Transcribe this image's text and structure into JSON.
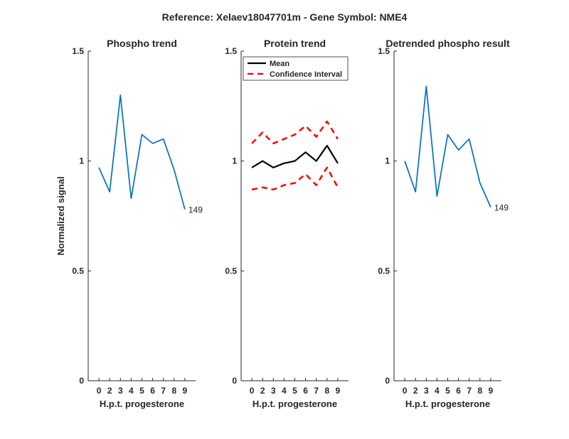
{
  "figure": {
    "suptitle": "Reference:  Xelaev18047701m - Gene Symbol:  NME4",
    "ylabel": "Normalized signal"
  },
  "colors": {
    "series_blue": "#0072BD",
    "mean_black": "#000000",
    "ci_red": "#FF0000",
    "axis": "#262626"
  },
  "chart_data": [
    {
      "type": "line",
      "title": "Phospho trend",
      "xlabel": "H.p.t. progesterone",
      "ylabel": "Normalized signal",
      "categories": [
        "0",
        "2",
        "3",
        "4",
        "5",
        "6",
        "7",
        "8",
        "9"
      ],
      "yticks": [
        "0",
        "0.5",
        "1",
        "1.5"
      ],
      "ylim": [
        0,
        1.5
      ],
      "grid": false,
      "series": [
        {
          "values": [
            0.97,
            0.86,
            1.3,
            0.83,
            1.12,
            1.08,
            1.1,
            0.96,
            0.78
          ],
          "color": "#0072BD",
          "style": "solid"
        }
      ],
      "end_label": "149"
    },
    {
      "type": "line",
      "title": "Protein trend",
      "xlabel": "H.p.t. progesterone",
      "categories": [
        "0",
        "2",
        "3",
        "4",
        "5",
        "6",
        "7",
        "8",
        "9"
      ],
      "yticks": [
        "0",
        "0.5",
        "1",
        "1.5"
      ],
      "ylim": [
        0,
        1.5
      ],
      "grid": false,
      "legend_position": "top",
      "series": [
        {
          "name": "Mean",
          "values": [
            0.97,
            1.0,
            0.97,
            0.99,
            1.0,
            1.04,
            1.0,
            1.07,
            0.99
          ],
          "color": "#000000",
          "style": "solid"
        },
        {
          "name": "Confidence Interval",
          "values": [
            1.08,
            1.13,
            1.08,
            1.1,
            1.12,
            1.16,
            1.11,
            1.18,
            1.1
          ],
          "color": "#FF0000",
          "style": "dashed"
        },
        {
          "values": [
            0.87,
            0.88,
            0.87,
            0.89,
            0.9,
            0.94,
            0.89,
            0.97,
            0.88
          ],
          "color": "#FF0000",
          "style": "dashed"
        }
      ]
    },
    {
      "type": "line",
      "title": "Detrended phospho result",
      "xlabel": "H.p.t. progesterone",
      "categories": [
        "0",
        "2",
        "3",
        "4",
        "5",
        "6",
        "7",
        "8",
        "9"
      ],
      "yticks": [
        "0",
        "0.5",
        "1",
        "1.5"
      ],
      "ylim": [
        0,
        1.5
      ],
      "grid": false,
      "series": [
        {
          "values": [
            1.0,
            0.86,
            1.34,
            0.84,
            1.12,
            1.05,
            1.1,
            0.9,
            0.79
          ],
          "color": "#0072BD",
          "style": "solid"
        }
      ],
      "end_label": "149"
    }
  ]
}
